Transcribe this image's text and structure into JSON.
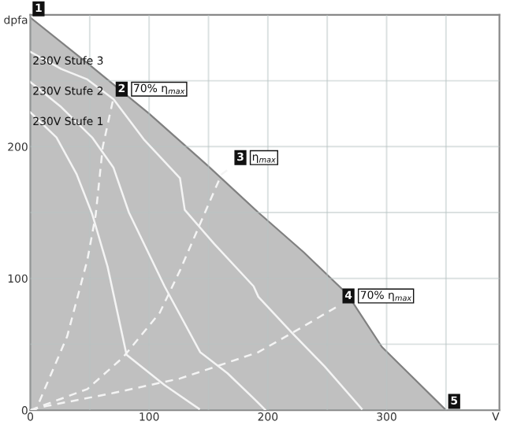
{
  "chart_data": {
    "type": "line",
    "xlabel": "V",
    "ylabel": "dpfa",
    "xlim": [
      0,
      395
    ],
    "ylim": [
      0,
      300
    ],
    "xticks": [
      0,
      {
        "value": 50,
        "label": null
      },
      100,
      {
        "value": 150,
        "label": null
      },
      200,
      {
        "value": 250,
        "label": null
      },
      300,
      {
        "value": 350,
        "label": null
      }
    ],
    "yticks": [
      0,
      {
        "value": 50,
        "label": null
      },
      100,
      {
        "value": 150,
        "label": null
      },
      200,
      {
        "value": 250,
        "label": null
      }
    ],
    "grid": true,
    "marker": "none",
    "series": [
      {
        "type": "area",
        "color": "#c0c0c0",
        "x": [
          0,
          50,
          100,
          150,
          192,
          230,
          267,
          296,
          350
        ],
        "values": [
          298,
          262,
          225,
          185,
          150,
          120,
          88,
          48,
          0
        ]
      },
      {
        "name": "230V Stufe 3",
        "color": "#f4f4f4",
        "line_style": "solid",
        "x": [
          0,
          26,
          48,
          70,
          96,
          126,
          130,
          155,
          188,
          192,
          220,
          248,
          279
        ],
        "values": [
          272,
          259,
          251,
          236,
          205,
          176,
          152,
          126,
          94,
          86,
          59,
          33,
          1
        ]
      },
      {
        "name": "230V Stufe 2",
        "color": "#f4f4f4",
        "line_style": "solid",
        "x": [
          0,
          26,
          52,
          70,
          83,
          113,
          143,
          166,
          188,
          198
        ],
        "values": [
          249,
          230,
          207,
          184,
          150,
          94,
          44,
          28,
          9,
          0
        ]
      },
      {
        "name": "230V Stufe 1",
        "color": "#f4f4f4",
        "line_style": "solid",
        "x": [
          0,
          22,
          39,
          52,
          65,
          81,
          113,
          142
        ],
        "values": [
          226,
          207,
          179,
          149,
          109,
          42,
          19,
          1
        ]
      },
      {
        "color": "#f4f4f4",
        "line_style": "dashed",
        "x": [
          0,
          5,
          31,
          48,
          55,
          61,
          70
        ],
        "values": [
          0,
          1,
          56,
          114,
          148,
          200,
          237
        ]
      },
      {
        "color": "#f4f4f4",
        "line_style": "dashed",
        "x": [
          0,
          48,
          78,
          109,
          126,
          148,
          161,
          170
        ],
        "values": [
          0,
          16,
          40,
          74,
          106,
          152,
          179,
          185
        ]
      },
      {
        "color": "#f4f4f4",
        "line_style": "dashed",
        "x": [
          0,
          13,
          70,
          126,
          156,
          192,
          227,
          261
        ],
        "values": [
          0,
          3,
          13,
          24,
          33,
          44,
          62,
          80
        ]
      }
    ],
    "annotations": [
      {
        "text": "1",
        "x": 0,
        "y": 298
      },
      {
        "text": "2",
        "x": 70,
        "y": 237
      },
      {
        "text": "70% η$_{max}$",
        "x": 70,
        "y": 237
      },
      {
        "text": "3",
        "x": 170,
        "y": 185
      },
      {
        "text": "η$_{max}$",
        "x": 170,
        "y": 185
      },
      {
        "text": "4",
        "x": 261,
        "y": 80
      },
      {
        "text": "70% η$_{max}$",
        "x": 261,
        "y": 80
      },
      {
        "text": "5",
        "x": 350,
        "y": 0
      }
    ]
  }
}
